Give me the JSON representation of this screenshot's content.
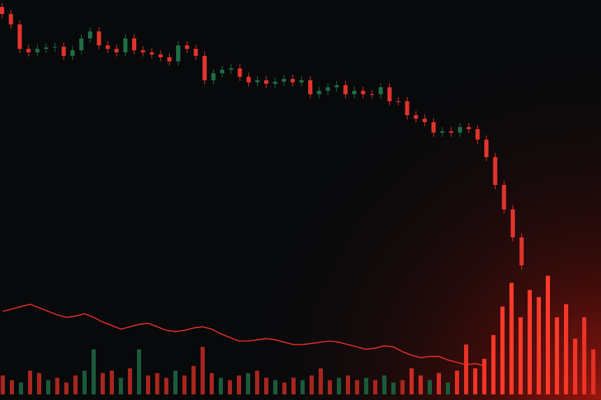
{
  "chart_data": [
    {
      "type": "candlestick",
      "up_color": "#1f6e45",
      "down_color": "#e0342c",
      "ylim": [
        3,
        60
      ],
      "open": [
        59,
        58,
        56.5,
        53,
        52.5,
        53,
        53.2,
        53.3,
        52,
        52.8,
        54.5,
        55.5,
        53.5,
        53,
        52.5,
        54.5,
        52.8,
        52.5,
        52.2,
        51.8,
        51.2,
        53.5,
        53,
        52,
        48.5,
        49.5,
        50,
        50.2,
        49,
        48.2,
        48.5,
        48,
        48.3,
        48.7,
        48.2,
        48.5,
        46.5,
        47,
        47.5,
        47.8,
        46.5,
        47,
        46.5,
        46.5,
        47.5,
        45.5,
        45.5,
        43.5,
        43,
        42.5,
        41,
        41.2,
        41,
        41.8,
        41.5,
        40,
        37.5,
        33.5,
        30,
        26
      ],
      "high": [
        59.6,
        58.6,
        57.1,
        53.6,
        53.6,
        53.8,
        53.9,
        53.9,
        53.4,
        55.1,
        56.1,
        56.1,
        54.1,
        53.6,
        55.1,
        55.1,
        53.4,
        53.1,
        52.8,
        52.4,
        54.1,
        54.1,
        53.6,
        52.6,
        50.1,
        50.6,
        50.8,
        50.8,
        49.6,
        49.1,
        49.1,
        48.9,
        49.3,
        49.3,
        49.1,
        49.1,
        47.6,
        48.1,
        48.4,
        48.4,
        47.6,
        47.6,
        47.1,
        48.1,
        48.1,
        46.1,
        46.1,
        44.1,
        43.6,
        43.1,
        41.8,
        41.8,
        42.4,
        42.4,
        42.1,
        40.6,
        38.1,
        34.1,
        30.6,
        26.6
      ],
      "low": [
        57.4,
        55.9,
        52.4,
        51.9,
        51.9,
        52.4,
        52.6,
        51.4,
        51.4,
        52.2,
        53.9,
        52.9,
        52.4,
        51.9,
        51.9,
        52.2,
        51.9,
        51.6,
        51.2,
        50.6,
        50.6,
        52.4,
        51.4,
        47.9,
        47.9,
        48.9,
        49.4,
        48.4,
        47.6,
        47.6,
        47.4,
        47.4,
        47.7,
        47.6,
        47.6,
        45.9,
        45.9,
        46.4,
        46.9,
        45.9,
        45.9,
        45.9,
        45.9,
        45.9,
        44.9,
        44.9,
        42.9,
        42.4,
        41.9,
        40.4,
        40.4,
        40.4,
        40.4,
        40.9,
        39.4,
        36.9,
        32.9,
        29.4,
        25.4,
        21.4
      ],
      "close": [
        58,
        56.5,
        53,
        52.5,
        53,
        53.2,
        53.3,
        52,
        52.8,
        54.5,
        55.5,
        53.5,
        53,
        52.5,
        54.5,
        52.8,
        52.5,
        52.2,
        51.8,
        51.2,
        53.5,
        53,
        52,
        48.5,
        49.5,
        50,
        50.2,
        49,
        48.2,
        48.5,
        48,
        48.3,
        48.7,
        48.2,
        48.5,
        46.5,
        47,
        47.5,
        47.8,
        46.5,
        47,
        46.5,
        46.5,
        47.5,
        45.5,
        45.5,
        43.5,
        43,
        42.5,
        41,
        41.2,
        41,
        41.8,
        41.5,
        40,
        37.5,
        33.5,
        30,
        26,
        22
      ]
    },
    {
      "type": "bar",
      "ylim": [
        0,
        100
      ],
      "values": [
        16,
        12,
        10,
        20,
        18,
        12,
        14,
        10,
        16,
        20,
        38,
        18,
        20,
        14,
        22,
        38,
        16,
        18,
        14,
        20,
        16,
        24,
        40,
        18,
        14,
        12,
        16,
        18,
        20,
        14,
        12,
        10,
        14,
        12,
        16,
        22,
        12,
        14,
        16,
        12,
        14,
        12,
        16,
        10,
        12,
        22,
        16,
        12,
        18,
        10,
        20,
        42,
        22,
        30,
        50,
        74,
        94,
        65,
        88,
        82,
        100,
        65,
        76,
        47,
        65,
        38
      ],
      "colors": [
        "#a8261f",
        "#a8261f",
        "#1b5a3b",
        "#a8261f",
        "#a8261f",
        "#1b5a3b",
        "#a8261f",
        "#a8261f",
        "#a8261f",
        "#1b5a3b",
        "#1b5a3b",
        "#a8261f",
        "#a8261f",
        "#1b5a3b",
        "#a8261f",
        "#1b5a3b",
        "#a8261f",
        "#a8261f",
        "#a8261f",
        "#1b5a3b",
        "#a8261f",
        "#a8261f",
        "#a8261f",
        "#a8261f",
        "#1b5a3b",
        "#a8261f",
        "#a8261f",
        "#1b5a3b",
        "#a8261f",
        "#a8261f",
        "#1b5a3b",
        "#a8261f",
        "#a8261f",
        "#1b5a3b",
        "#a8261f",
        "#a8261f",
        "#a8261f",
        "#1b5a3b",
        "#a8261f",
        "#a8261f",
        "#1b5a3b",
        "#a8261f",
        "#1b5a3b",
        "#1b5a3b",
        "#a8261f",
        "#c92c22",
        "#c92c22",
        "#1b5a3b",
        "#d42e23",
        "#1b5a3b",
        "#e03024",
        "#e83226",
        "#ee3327",
        "#f23427",
        "#f63628",
        "#ff3a2a",
        "#ff3a2a",
        "#ff3a2a",
        "#ff3a2a",
        "#ff3a2a",
        "#ff3a2a",
        "#ff3a2a",
        "#f83628",
        "#f03427",
        "#ea3226",
        "#e03024"
      ],
      "overlay": {
        "type": "line",
        "color": "#e3302a",
        "values": [
          70,
          72,
          74,
          76,
          73,
          70,
          67,
          65,
          66,
          68,
          65,
          61,
          58,
          55,
          57,
          59,
          60,
          57,
          54,
          53,
          54,
          56,
          57,
          55,
          51,
          48,
          45,
          45,
          46,
          47,
          46,
          44,
          42,
          42,
          43,
          44,
          45,
          44,
          42,
          40,
          38,
          39,
          41,
          40,
          36,
          33,
          31,
          32,
          32,
          29,
          27,
          25,
          26,
          24,
          null,
          null,
          null,
          null,
          null,
          null,
          null,
          null,
          null,
          null,
          null,
          null
        ]
      }
    }
  ]
}
